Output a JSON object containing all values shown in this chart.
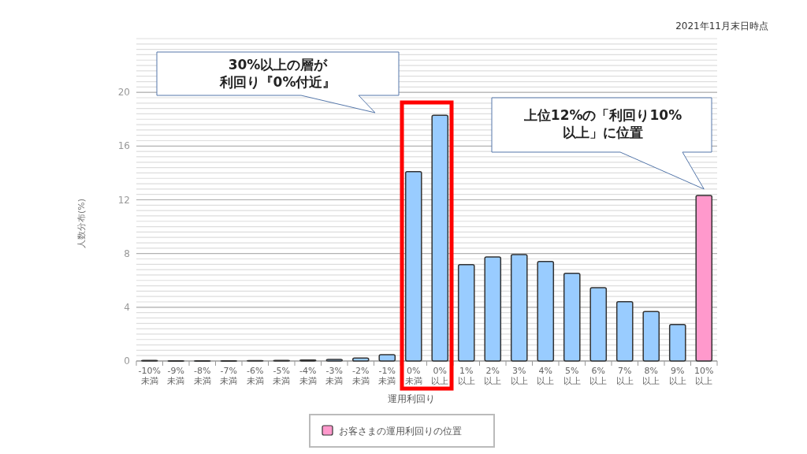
{
  "chart_data": {
    "type": "bar",
    "categories": [
      "-10%\n未満",
      "-9%\n未満",
      "-8%\n未満",
      "-7%\n未満",
      "-6%\n未満",
      "-5%\n未満",
      "-4%\n未満",
      "-3%\n未満",
      "-2%\n未満",
      "-1%\n未満",
      "0%\n未満",
      "0%\n以上",
      "1%\n以上",
      "2%\n以上",
      "3%\n以上",
      "4%\n以上",
      "5%\n以上",
      "6%\n以上",
      "7%\n以上",
      "8%\n以上",
      "9%\n以上",
      "10%\n以上"
    ],
    "series": [
      {
        "color": "#99ccff",
        "values": [
          0.05,
          0.02,
          0.02,
          0.02,
          0.03,
          0.05,
          0.08,
          0.12,
          0.22,
          0.47,
          14.1,
          18.3,
          7.17,
          7.74,
          7.92,
          7.41,
          6.53,
          5.45,
          4.42,
          3.68,
          2.72,
          null
        ]
      },
      {
        "name": "お客さまの運用利回りの位置",
        "color": "#ff99cc",
        "values": [
          null,
          null,
          null,
          null,
          null,
          null,
          null,
          null,
          null,
          null,
          null,
          null,
          null,
          null,
          null,
          null,
          null,
          null,
          null,
          null,
          null,
          12.33
        ]
      }
    ],
    "ylim": [
      0,
      24
    ],
    "yticks": [
      0,
      4,
      8,
      12,
      16,
      20
    ],
    "xlabel": "運用利回り",
    "ylabel": "人数分布(%)",
    "grid": "y",
    "legend": "bottom",
    "annotations": [
      "2021年11月末日時点",
      "30%以上の層が利回り『0%付近』",
      "上位12%の「利回り10%以上」に位置"
    ]
  }
}
